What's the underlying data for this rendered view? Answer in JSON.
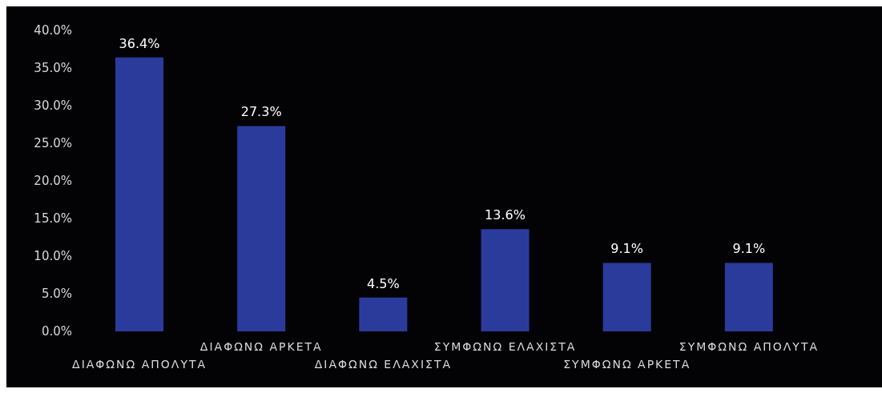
{
  "chart_data": {
    "type": "bar",
    "categories": [
      "ΔΙΑΦΩΝΩ ΑΠΟΛΥΤΑ",
      "ΔΙΑΦΩΝΩ ΑΡΚΕΤΑ",
      "ΔΙΑΦΩΝΩ ΕΛΑΧΙΣΤΑ",
      "ΣΥΜΦΩΝΩ ΕΛΑΧΙΣΤΑ",
      "ΣΥΜΦΩΝΩ ΑΡΚΕΤΑ",
      "ΣΥΜΦΩΝΩ ΑΠΟΛΥΤΑ"
    ],
    "values": [
      36.4,
      27.3,
      4.5,
      13.6,
      9.1,
      9.1
    ],
    "color": "#2b3b9c",
    "ylim": [
      0,
      40
    ],
    "yticks": [
      {
        "value": 0,
        "label": "0.0%"
      },
      {
        "value": 5,
        "label": "5.0%"
      },
      {
        "value": 10,
        "label": "10.0%"
      },
      {
        "value": 15,
        "label": "15.0%"
      },
      {
        "value": 20,
        "label": "20.0%"
      },
      {
        "value": 25,
        "label": "25.0%"
      },
      {
        "value": 30,
        "label": "30.0%"
      },
      {
        "value": 35,
        "label": "35.0%"
      },
      {
        "value": 40,
        "label": "40.0%"
      }
    ],
    "value_labels": [
      "36.4%",
      "27.3%",
      "4.5%",
      "13.6%",
      "9.1%",
      "9.1%"
    ],
    "grid": false
  }
}
